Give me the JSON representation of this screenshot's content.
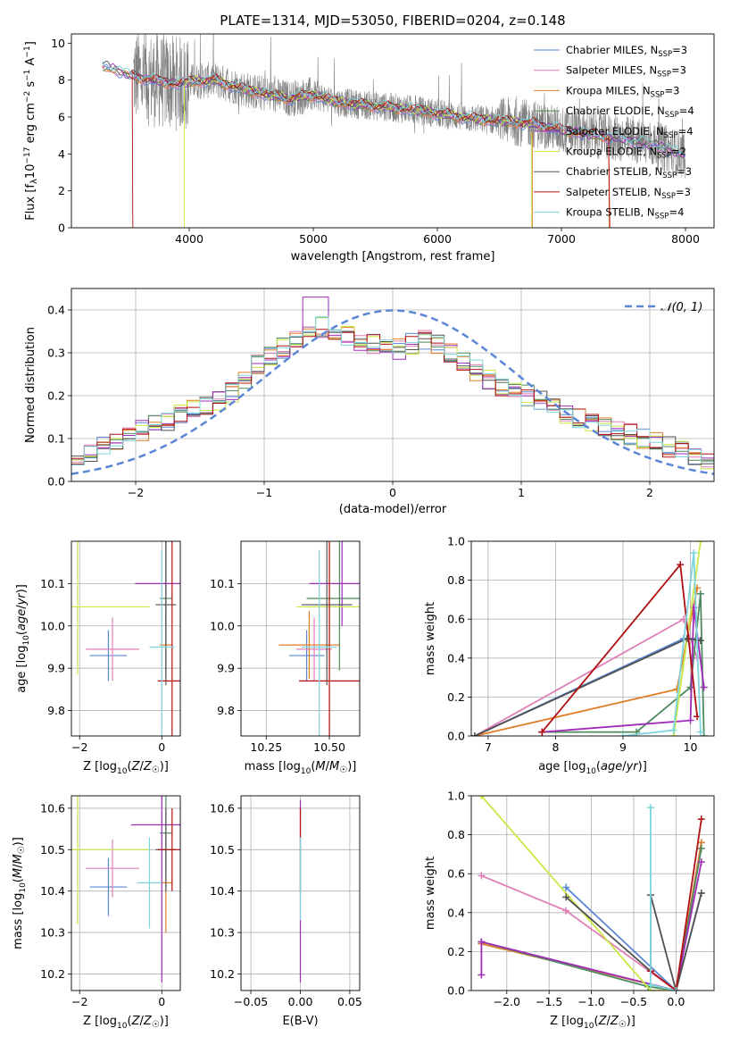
{
  "figure": {
    "title": "PLATE=1314, MJD=53050, FIBERID=0204, z=0.148"
  },
  "colors": {
    "Chabrier MILES": "#5b86d6",
    "Salpeter MILES": "#e07fb8",
    "Kroupa MILES": "#e07d25",
    "Chabrier ELODIE": "#4e8a5e",
    "Salpeter ELODIE": "#a02cb8",
    "Kroupa ELODIE": "#c8e844",
    "Chabrier STELIB": "#505050",
    "Salpeter STELIB": "#b01010",
    "Kroupa STELIB": "#7ed4dc",
    "data": "#808080",
    "normal_curve": "#5b86d6"
  },
  "chart_data": [
    {
      "id": "spectrum",
      "type": "line",
      "title": "PLATE=1314, MJD=53050, FIBERID=0204, z=0.148",
      "xlabel": "wavelength [Angstrom, rest frame]",
      "ylabel": "Flux [fλ10⁻¹⁷ erg cm⁻² s⁻¹ A⁻¹]",
      "xlim": [
        3050,
        8230
      ],
      "ylim": [
        0,
        10.5
      ],
      "xticks": [
        4000,
        5000,
        6000,
        7000,
        8000
      ],
      "yticks": [
        0,
        2,
        4,
        6,
        8,
        10
      ],
      "grid": false,
      "legend_position": "right",
      "legend": [
        "Chabrier MILES, N_SSP=3",
        "Salpeter MILES, N_SSP=3",
        "Kroupa MILES, N_SSP=3",
        "Chabrier ELODIE, N_SSP=4",
        "Salpeter ELODIE, N_SSP=4",
        "Kroupa ELODIE, N_SSP=2",
        "Chabrier STELIB, N_SSP=3",
        "Salpeter STELIB, N_SSP=3",
        "Kroupa STELIB, N_SSP=4"
      ],
      "legend_display": [
        {
          "name": "Chabrier MILES, N",
          "sub": "SSP",
          "tail": "=3"
        },
        {
          "name": "Salpeter MILES, N",
          "sub": "SSP",
          "tail": "=3"
        },
        {
          "name": "Kroupa MILES, N",
          "sub": "SSP",
          "tail": "=3"
        },
        {
          "name": "Chabrier ELODIE, N",
          "sub": "SSP",
          "tail": "=4"
        },
        {
          "name": "Salpeter ELODIE, N",
          "sub": "SSP",
          "tail": "=4"
        },
        {
          "name": "Kroupa ELODIE, N",
          "sub": "SSP",
          "tail": "=2"
        },
        {
          "name": "Chabrier STELIB, N",
          "sub": "SSP",
          "tail": "=3"
        },
        {
          "name": "Salpeter STELIB, N",
          "sub": "SSP",
          "tail": "=3"
        },
        {
          "name": "Kroupa STELIB, N",
          "sub": "SSP",
          "tail": "=4"
        }
      ],
      "model_trend": {
        "x": [
          3300,
          3400,
          3500,
          3700,
          3900,
          4000,
          4200,
          4500,
          4800,
          5000,
          5200,
          5500,
          5800,
          6000,
          6300,
          6500,
          6800,
          7000,
          7300,
          7500,
          7800,
          8000
        ],
        "y": [
          8.8,
          8.6,
          8.3,
          8.0,
          7.8,
          7.9,
          8.0,
          7.4,
          7.0,
          7.2,
          6.8,
          6.6,
          6.4,
          6.2,
          5.9,
          5.8,
          5.6,
          5.3,
          5.0,
          4.8,
          4.4,
          3.9
        ]
      }
    },
    {
      "id": "residuals",
      "type": "histogram",
      "xlabel": "(data-model)/error",
      "ylabel": "Normed distribution",
      "xlim": [
        -2.5,
        2.5
      ],
      "ylim": [
        0,
        0.45
      ],
      "xticks": [
        -2,
        -1,
        0,
        1,
        2
      ],
      "yticks": [
        0.0,
        0.1,
        0.2,
        0.3,
        0.4
      ],
      "grid": true,
      "legend_position": "top-right",
      "legend": [
        "N(0,1)"
      ],
      "normal_curve": {
        "mean": 0,
        "sigma": 1
      },
      "bin_centers": [
        -2.45,
        -2.35,
        -2.25,
        -2.15,
        -2.05,
        -1.95,
        -1.85,
        -1.75,
        -1.65,
        -1.55,
        -1.45,
        -1.35,
        -1.25,
        -1.15,
        -1.05,
        -0.95,
        -0.85,
        -0.75,
        -0.65,
        -0.55,
        -0.45,
        -0.35,
        -0.25,
        -0.15,
        -0.05,
        0.05,
        0.15,
        0.25,
        0.35,
        0.45,
        0.55,
        0.65,
        0.75,
        0.85,
        0.95,
        1.05,
        1.15,
        1.25,
        1.35,
        1.45,
        1.55,
        1.65,
        1.75,
        1.85,
        1.95,
        2.05,
        2.15,
        2.25,
        2.35,
        2.45
      ],
      "typical_density": [
        0.06,
        0.07,
        0.08,
        0.09,
        0.1,
        0.12,
        0.13,
        0.14,
        0.16,
        0.17,
        0.18,
        0.19,
        0.21,
        0.24,
        0.27,
        0.29,
        0.31,
        0.33,
        0.35,
        0.36,
        0.35,
        0.34,
        0.33,
        0.32,
        0.31,
        0.31,
        0.32,
        0.33,
        0.32,
        0.3,
        0.28,
        0.26,
        0.24,
        0.22,
        0.21,
        0.2,
        0.19,
        0.18,
        0.16,
        0.15,
        0.14,
        0.13,
        0.12,
        0.11,
        0.1,
        0.09,
        0.08,
        0.07,
        0.06,
        0.05
      ]
    },
    {
      "id": "age-vs-Z",
      "type": "scatter",
      "xlabel": "Z [log10(Z/Z☉)]",
      "ylabel": "age [log10(age/yr)]",
      "xlim": [
        -2.2,
        0.45
      ],
      "ylim": [
        9.74,
        10.2
      ],
      "xticks": [
        -2,
        0
      ],
      "yticks": [
        9.8,
        9.9,
        10.0,
        10.1
      ],
      "grid": true,
      "points": [
        {
          "series": "Chabrier MILES",
          "x": -1.3,
          "y": 9.93,
          "xerr": 0.45,
          "yerr": 0.06
        },
        {
          "series": "Salpeter MILES",
          "x": -1.2,
          "y": 9.945,
          "xerr": 0.65,
          "yerr": 0.075
        },
        {
          "series": "Kroupa MILES",
          "x": 0.1,
          "y": 9.955,
          "xerr": 0.15,
          "yerr": 0.08
        },
        {
          "series": "Chabrier ELODIE",
          "x": 0.1,
          "y": 10.065,
          "xerr": 0.15,
          "yerr": 0.17
        },
        {
          "series": "Salpeter ELODIE",
          "x": 0.1,
          "y": 10.1,
          "xerr": 0.75,
          "yerr": 0.1
        },
        {
          "series": "Kroupa ELODIE",
          "x": -2.05,
          "y": 10.045,
          "xerr": 1.75,
          "yerr": 0.16
        },
        {
          "series": "Chabrier STELIB",
          "x": 0.1,
          "y": 10.05,
          "xerr": 0.25,
          "yerr": 0.19
        },
        {
          "series": "Salpeter STELIB",
          "x": 0.25,
          "y": 9.87,
          "xerr": 0.35,
          "yerr": 0.38
        },
        {
          "series": "Kroupa STELIB",
          "x": 0.0,
          "y": 9.95,
          "xerr": 0.3,
          "yerr": 0.23
        }
      ]
    },
    {
      "id": "age-vs-mass",
      "type": "scatter",
      "xlabel": "mass [log10(M/M☉)]",
      "ylabel": "",
      "xlim": [
        10.15,
        10.62
      ],
      "ylim": [
        9.74,
        10.2
      ],
      "xticks": [
        10.25,
        10.5
      ],
      "yticks": [
        9.8,
        9.9,
        10.0,
        10.1
      ],
      "grid": true,
      "points": [
        {
          "series": "Chabrier MILES",
          "x": 10.41,
          "y": 9.93,
          "xerr": 0.07,
          "yerr": 0.06
        },
        {
          "series": "Salpeter MILES",
          "x": 10.44,
          "y": 9.945,
          "xerr": 0.07,
          "yerr": 0.075
        },
        {
          "series": "Kroupa MILES",
          "x": 10.42,
          "y": 9.955,
          "xerr": 0.12,
          "yerr": 0.08
        },
        {
          "series": "Chabrier ELODIE",
          "x": 10.54,
          "y": 10.065,
          "xerr": 0.13,
          "yerr": 0.17
        },
        {
          "series": "Salpeter ELODIE",
          "x": 10.55,
          "y": 10.1,
          "xerr": 0.13,
          "yerr": 0.1
        },
        {
          "series": "Kroupa ELODIE",
          "x": 10.5,
          "y": 10.045,
          "xerr": 0.13,
          "yerr": 0.16
        },
        {
          "series": "Chabrier STELIB",
          "x": 10.49,
          "y": 10.05,
          "xerr": 0.1,
          "yerr": 0.19
        },
        {
          "series": "Salpeter STELIB",
          "x": 10.5,
          "y": 9.87,
          "xerr": 0.12,
          "yerr": 0.38
        },
        {
          "series": "Kroupa STELIB",
          "x": 10.46,
          "y": 9.95,
          "xerr": 0.07,
          "yerr": 0.23
        }
      ]
    },
    {
      "id": "mass-weight-vs-age",
      "type": "line",
      "xlabel": "age [log10(age/yr)]",
      "ylabel": "mass weight",
      "xlim": [
        6.75,
        10.35
      ],
      "ylim": [
        0,
        1.0
      ],
      "xticks": [
        7,
        8,
        9,
        10
      ],
      "yticks": [
        0.0,
        0.2,
        0.4,
        0.6,
        0.8,
        1.0
      ],
      "grid": true,
      "series": [
        {
          "name": "Chabrier MILES",
          "x": [
            6.8,
            9.9,
            10.1
          ],
          "y": [
            0.0,
            0.5,
            0.5
          ]
        },
        {
          "name": "Salpeter MILES",
          "x": [
            6.8,
            9.9,
            10.1
          ],
          "y": [
            0.0,
            0.6,
            0.4
          ]
        },
        {
          "name": "Kroupa MILES",
          "x": [
            6.8,
            9.8,
            10.1
          ],
          "y": [
            0.0,
            0.24,
            0.76
          ]
        },
        {
          "name": "Chabrier ELODIE",
          "x": [
            7.8,
            9.2,
            10.0,
            10.15,
            10.2
          ],
          "y": [
            0.02,
            0.02,
            0.25,
            0.73,
            0.0
          ]
        },
        {
          "name": "Salpeter ELODIE",
          "x": [
            7.8,
            10.0,
            10.05,
            10.2
          ],
          "y": [
            0.02,
            0.08,
            0.66,
            0.25
          ]
        },
        {
          "name": "Kroupa ELODIE",
          "x": [
            9.75,
            10.15
          ],
          "y": [
            0.0,
            1.0
          ]
        },
        {
          "name": "Chabrier STELIB",
          "x": [
            6.8,
            9.95,
            10.15
          ],
          "y": [
            0.0,
            0.5,
            0.49
          ]
        },
        {
          "name": "Salpeter STELIB",
          "x": [
            7.8,
            9.85,
            10.1
          ],
          "y": [
            0.02,
            0.88,
            0.1
          ]
        },
        {
          "name": "Kroupa STELIB",
          "x": [
            9.0,
            9.75,
            10.05,
            10.15
          ],
          "y": [
            0.0,
            0.03,
            0.94,
            0.02
          ]
        }
      ]
    },
    {
      "id": "mass-vs-Z",
      "type": "scatter",
      "xlabel": "Z [log10(Z/Z☉)]",
      "ylabel": "mass [log10(M/M☉)]",
      "xlim": [
        -2.2,
        0.45
      ],
      "ylim": [
        10.16,
        10.63
      ],
      "xticks": [
        -2,
        0
      ],
      "yticks": [
        10.2,
        10.3,
        10.4,
        10.5,
        10.6
      ],
      "grid": true,
      "points": [
        {
          "series": "Chabrier MILES",
          "x": -1.3,
          "y": 10.41,
          "xerr": 0.45,
          "yerr": 0.07
        },
        {
          "series": "Salpeter MILES",
          "x": -1.2,
          "y": 10.455,
          "xerr": 0.65,
          "yerr": 0.07
        },
        {
          "series": "Kroupa MILES",
          "x": 0.1,
          "y": 10.42,
          "xerr": 0.15,
          "yerr": 0.12
        },
        {
          "series": "Chabrier ELODIE",
          "x": 0.1,
          "y": 10.54,
          "xerr": 0.15,
          "yerr": 0.1
        },
        {
          "series": "Salpeter ELODIE",
          "x": 0.0,
          "y": 10.56,
          "xerr": 0.75,
          "yerr": 0.38
        },
        {
          "series": "Kroupa ELODIE",
          "x": -2.05,
          "y": 10.5,
          "xerr": 1.75,
          "yerr": 0.18
        },
        {
          "series": "Chabrier STELIB",
          "x": 0.1,
          "y": 10.5,
          "xerr": 0.25,
          "yerr": 0.1
        },
        {
          "series": "Salpeter STELIB",
          "x": 0.25,
          "y": 10.5,
          "xerr": 0.35,
          "yerr": 0.1
        },
        {
          "series": "Kroupa STELIB",
          "x": -0.3,
          "y": 10.42,
          "xerr": 0.3,
          "yerr": 0.11
        }
      ]
    },
    {
      "id": "mass-vs-EBV",
      "type": "scatter",
      "xlabel": "E(B-V)",
      "ylabel": "",
      "xlim": [
        -0.06,
        0.06
      ],
      "ylim": [
        10.16,
        10.63
      ],
      "xticks": [
        -0.05,
        0.0,
        0.05
      ],
      "yticks": [
        10.2,
        10.3,
        10.4,
        10.5,
        10.6
      ],
      "grid": true,
      "points": [
        {
          "series": "Salpeter ELODIE",
          "x": 0.0,
          "y": 10.4,
          "xerr": 0,
          "yerr": 0.22
        },
        {
          "series": "Salpeter STELIB",
          "x": 0.0,
          "y": 10.5,
          "xerr": 0,
          "yerr": 0.1
        },
        {
          "series": "Kroupa STELIB",
          "x": 0.0,
          "y": 10.43,
          "xerr": 0,
          "yerr": 0.1
        }
      ]
    },
    {
      "id": "mass-weight-vs-Z",
      "type": "line",
      "xlabel": "Z [log10(Z/Z☉)]",
      "ylabel": "mass weight",
      "xlim": [
        -2.42,
        0.45
      ],
      "ylim": [
        0,
        1.0
      ],
      "xticks": [
        -2.0,
        -1.5,
        -1.0,
        -0.5,
        0.0
      ],
      "yticks": [
        0.0,
        0.2,
        0.4,
        0.6,
        0.8,
        1.0
      ],
      "grid": true,
      "series": [
        {
          "name": "Chabrier MILES",
          "x": [
            -1.3,
            0.0,
            0.3
          ],
          "y": [
            0.53,
            0.0,
            0.5
          ]
        },
        {
          "name": "Salpeter MILES",
          "x": [
            -2.3,
            -1.3,
            0.0,
            0.3
          ],
          "y": [
            0.59,
            0.41,
            0.0,
            0.76
          ]
        },
        {
          "name": "Kroupa MILES",
          "x": [
            -2.3,
            0.0,
            0.3
          ],
          "y": [
            0.24,
            0.0,
            0.76
          ]
        },
        {
          "name": "Chabrier ELODIE",
          "x": [
            -2.3,
            -0.33,
            0.0,
            0.3
          ],
          "y": [
            0.25,
            0.02,
            0.0,
            0.73
          ]
        },
        {
          "name": "Salpeter ELODIE",
          "x": [
            -2.3,
            -2.3,
            0.0,
            0.3
          ],
          "y": [
            0.08,
            0.25,
            0.0,
            0.66
          ]
        },
        {
          "name": "Kroupa ELODIE",
          "x": [
            -2.3,
            -0.3,
            0.0
          ],
          "y": [
            1.0,
            0.0,
            0.0
          ]
        },
        {
          "name": "Chabrier STELIB",
          "x": [
            -1.3,
            -0.3,
            -0.3,
            0.0,
            0.3
          ],
          "y": [
            0.48,
            0.1,
            0.49,
            0.0,
            0.5
          ]
        },
        {
          "name": "Salpeter STELIB",
          "x": [
            -0.3,
            0.0,
            0.3
          ],
          "y": [
            0.1,
            0.0,
            0.88
          ]
        },
        {
          "name": "Kroupa STELIB",
          "x": [
            -0.3,
            -0.3,
            0.0
          ],
          "y": [
            0.94,
            0.03,
            0.0
          ]
        }
      ]
    }
  ]
}
